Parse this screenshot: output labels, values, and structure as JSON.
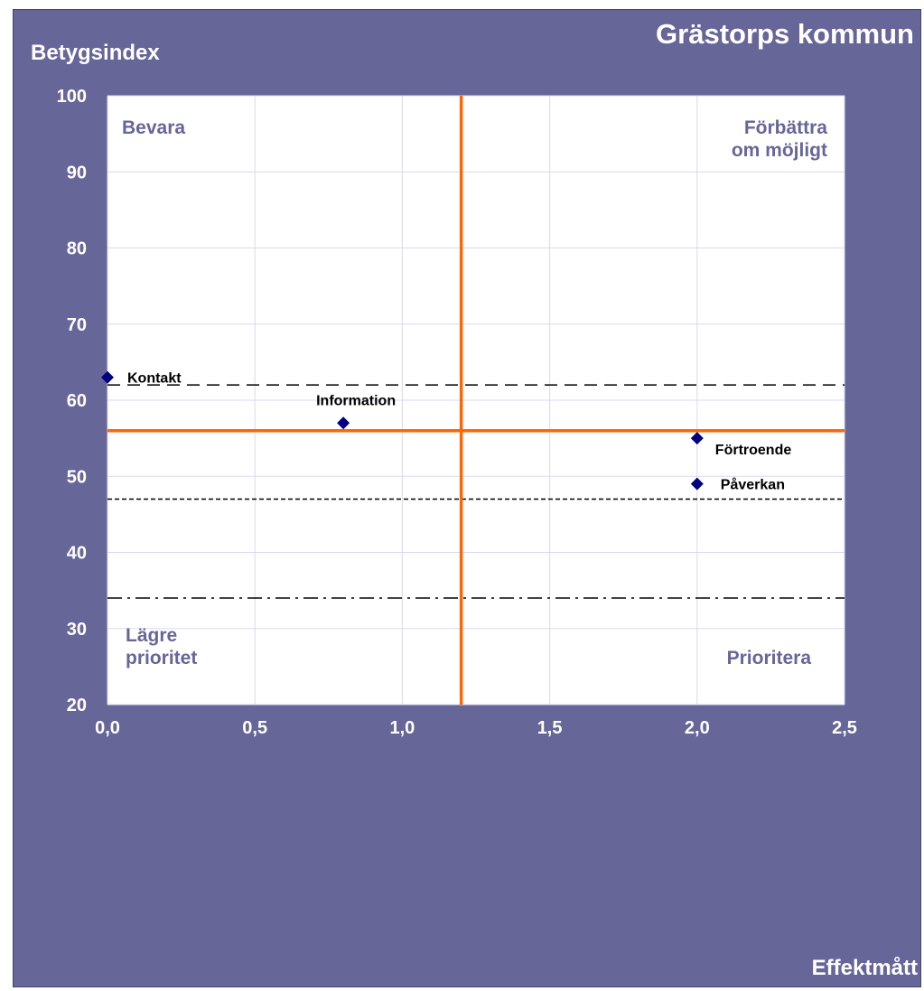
{
  "chart_data": {
    "type": "scatter",
    "title": "Grästorps kommun",
    "xlabel": "Effektmått",
    "ylabel": "Betygsindex",
    "xlim": [
      0,
      2.5
    ],
    "ylim": [
      20,
      100
    ],
    "x_ticks": [
      "0,0",
      "0,5",
      "1,0",
      "1,5",
      "2,0",
      "2,5"
    ],
    "x_tick_values": [
      0,
      0.5,
      1.0,
      1.5,
      2.0,
      2.5
    ],
    "y_ticks": [
      "20",
      "30",
      "40",
      "50",
      "60",
      "70",
      "80",
      "90",
      "100"
    ],
    "y_tick_values": [
      20,
      30,
      40,
      50,
      60,
      70,
      80,
      90,
      100
    ],
    "grid": true,
    "points": [
      {
        "label": "Kontakt",
        "x": 0.0,
        "y": 63
      },
      {
        "label": "Information",
        "x": 0.8,
        "y": 57
      },
      {
        "label": "Förtroende",
        "x": 2.0,
        "y": 55
      },
      {
        "label": "Påverkan",
        "x": 2.0,
        "y": 49
      }
    ],
    "quadrant_lines": {
      "x": 1.2,
      "y": 56
    },
    "reference_lines": [
      {
        "y": 62,
        "style": "long-dash"
      },
      {
        "y": 47,
        "style": "short-dash"
      },
      {
        "y": 34,
        "style": "dash-dot"
      }
    ],
    "quadrant_labels": {
      "top_left": [
        "Bevara"
      ],
      "top_right": [
        "Förbättra",
        "om möjligt"
      ],
      "bottom_left": [
        "Lägre",
        "prioritet"
      ],
      "bottom_right": [
        "Prioritera"
      ]
    },
    "colors": {
      "background": "#666699",
      "plot_area": "#ffffff",
      "grid": "#d9d9f0",
      "quadrant_line": "#ff6600",
      "marker": "#000080",
      "quadrant_label": "#666699",
      "axis_text": "#ffffff"
    }
  }
}
